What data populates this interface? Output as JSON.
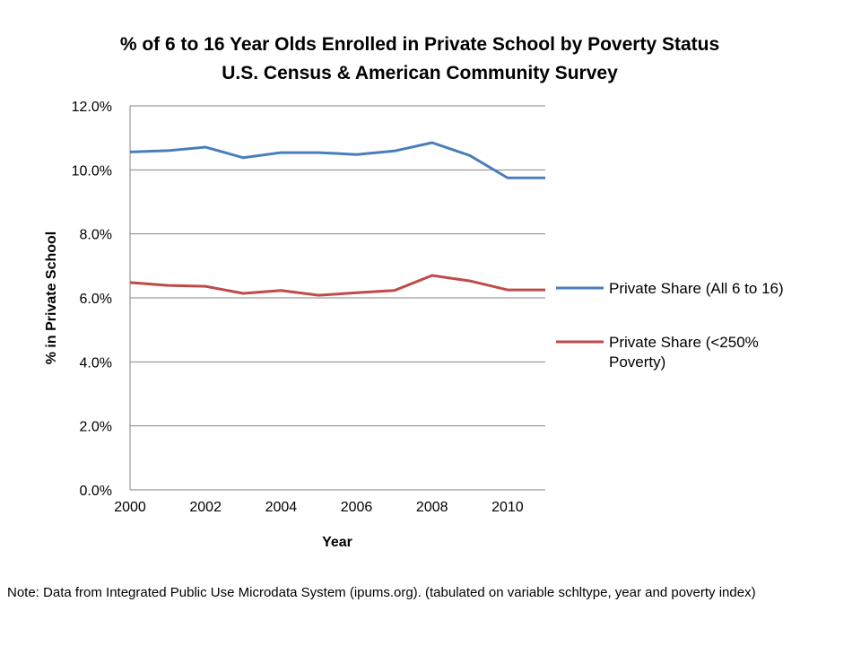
{
  "chart_data": {
    "type": "line",
    "title": "% of 6 to 16 Year Olds Enrolled in Private School by Poverty Status",
    "subtitle": "U.S. Census & American Community Survey",
    "xlabel": "Year",
    "ylabel": "% in Private School",
    "x": [
      2000,
      2001,
      2002,
      2003,
      2004,
      2005,
      2006,
      2007,
      2008,
      2009,
      2010,
      2011
    ],
    "xlim": [
      2000,
      2011
    ],
    "xticks": [
      "2000",
      "2002",
      "2004",
      "2006",
      "2008",
      "2010"
    ],
    "ylim": [
      0,
      12
    ],
    "yticks": [
      "0.0%",
      "2.0%",
      "4.0%",
      "6.0%",
      "8.0%",
      "10.0%",
      "12.0%"
    ],
    "grid": true,
    "legend_position": "right",
    "series": [
      {
        "name": "Private Share (All 6 to 16)",
        "color": "#4a7ebb",
        "values": [
          10.56,
          10.6,
          10.71,
          10.38,
          10.54,
          10.54,
          10.48,
          10.59,
          10.85,
          10.45,
          9.75,
          9.75
        ]
      },
      {
        "name": "Private Share (<250% Poverty)",
        "color": "#be4b48",
        "values": [
          6.48,
          6.39,
          6.36,
          6.14,
          6.23,
          6.08,
          6.16,
          6.23,
          6.7,
          6.53,
          6.25,
          6.25
        ]
      }
    ]
  },
  "legend": {
    "line1": "Private Share (All 6 to 16)",
    "line2a": "Private Share (<250%",
    "line2b": "Poverty)"
  },
  "note": "Note: Data from Integrated Public Use Microdata System (ipums.org). (tabulated on variable schltype, year and poverty index)"
}
